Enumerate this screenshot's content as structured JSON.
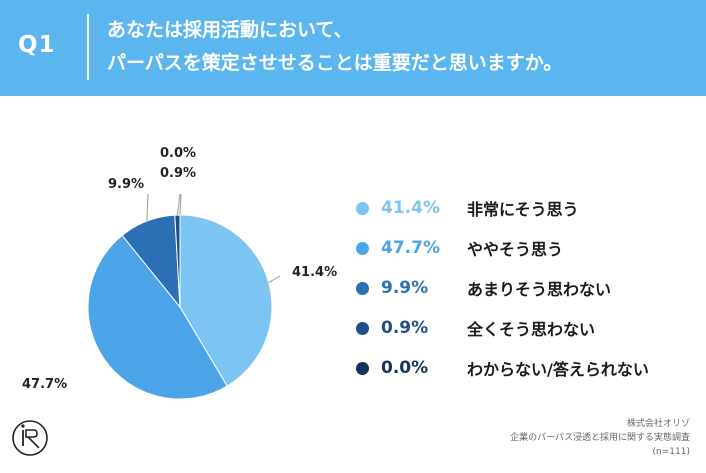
{
  "header": {
    "question_no": "Q1",
    "line1": "あなたは採用活動において、",
    "line2": "パーパスを策定させせることは重要だと思いますか。"
  },
  "chart_data": {
    "type": "pie",
    "title": "",
    "slices": [
      {
        "label": "非常にそう思う",
        "value": 41.4,
        "display": "41.4%",
        "color": "#7cc4f2"
      },
      {
        "label": "ややそう思う",
        "value": 47.7,
        "display": "47.7%",
        "color": "#4ba4e8"
      },
      {
        "label": "あまりそう思わない",
        "value": 9.9,
        "display": "9.9%",
        "color": "#2b6fb4"
      },
      {
        "label": "全くそう思わない",
        "value": 0.9,
        "display": "0.9%",
        "color": "#1f4f88"
      },
      {
        "label": "わからない/答えられない",
        "value": 0.0,
        "display": "0.0%",
        "color": "#16335c"
      }
    ],
    "legend_placement": "right"
  },
  "credit": {
    "company": "株式会社オリゾ",
    "survey": "企業のパーパス浸透と採用に関する実態調査",
    "sample": "(n=111)"
  },
  "logo": {
    "icon": "riz-circle-logo"
  }
}
